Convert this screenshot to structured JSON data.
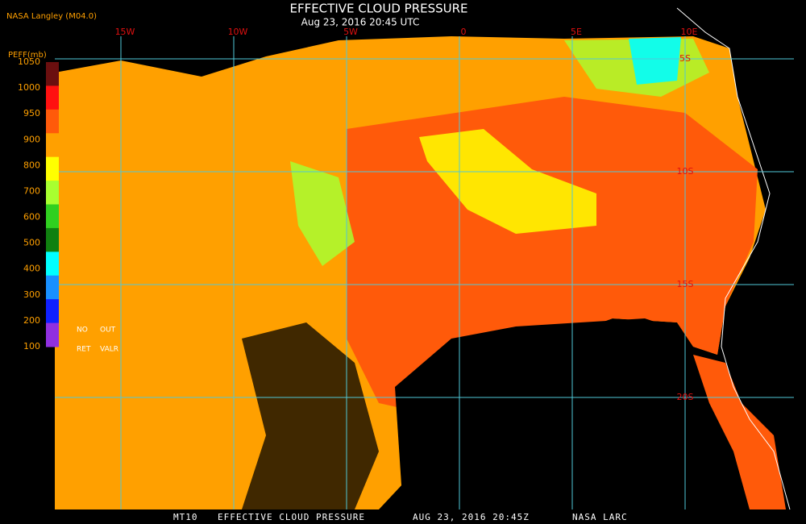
{
  "header": {
    "source": "NASA Langley (M04.0)",
    "title": "EFFECTIVE CLOUD PRESSURE",
    "subtitle": "Aug 23, 2016 20:45 UTC"
  },
  "legend": {
    "title": "PEFF(mb)",
    "labels": [
      1050,
      1000,
      950,
      900,
      800,
      700,
      600,
      500,
      400,
      300,
      200,
      100
    ],
    "colors": [
      "#6b0f0f",
      "#ff1010",
      "#ff5a0a",
      "#ffa000",
      "#ffff00",
      "#a8ff30",
      "#30d020",
      "#108010",
      "#00ffff",
      "#1890ff",
      "#1020ff",
      "#9030e0"
    ],
    "notes": [
      "NO",
      "OUT",
      "RET",
      "VALR"
    ]
  },
  "graticule": {
    "longitudes": [
      "15W",
      "10W",
      "5W",
      "0",
      "5E",
      "10E"
    ],
    "latitudes": [
      "5S",
      "10S",
      "15S",
      "20S"
    ]
  },
  "footer": [
    "MT10",
    "EFFECTIVE CLOUD PRESSURE",
    "AUG 23, 2016 20:45Z",
    "NASA LARC"
  ]
}
